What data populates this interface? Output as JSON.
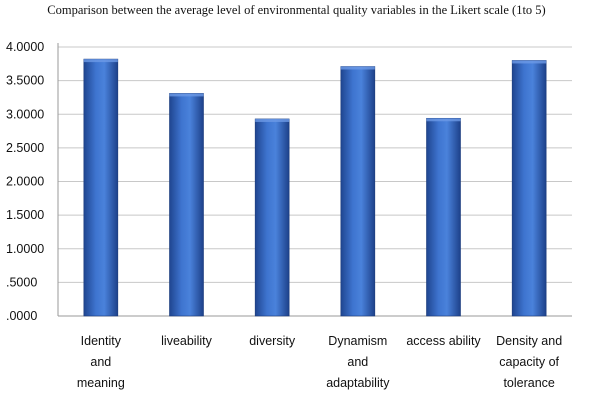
{
  "chart_data": {
    "type": "bar",
    "title": "Comparison between the average level of environmental quality variables in the Likert scale (1to 5)",
    "categories": [
      [
        "Identity",
        "and",
        "meaning"
      ],
      [
        "liveability"
      ],
      [
        "diversity"
      ],
      [
        "Dynamism",
        "and",
        "adaptability"
      ],
      [
        "access ability"
      ],
      [
        "Density and",
        "capacity of",
        "tolerance"
      ]
    ],
    "values": [
      3.82,
      3.31,
      2.93,
      3.71,
      2.94,
      3.8
    ],
    "ylim": [
      0,
      4
    ],
    "yticks": [
      {
        "value": 4,
        "label": "4.0000"
      },
      {
        "value": 3.5,
        "label": "3.5000"
      },
      {
        "value": 3,
        "label": "3.0000"
      },
      {
        "value": 2.5,
        "label": "2.5000"
      },
      {
        "value": 2,
        "label": "2.0000"
      },
      {
        "value": 1.5,
        "label": "1.5000"
      },
      {
        "value": 1,
        "label": "1.0000"
      },
      {
        "value": 0.5,
        "label": ".5000"
      },
      {
        "value": 0,
        "label": ".0000"
      }
    ],
    "grid": true,
    "bar_color": "#2f5fb5",
    "xlabel": "",
    "ylabel": ""
  }
}
